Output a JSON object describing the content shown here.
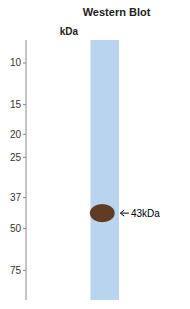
{
  "chart_data": {
    "type": "gel",
    "title": "Western Blot",
    "y_label": "kDa",
    "log": "y",
    "ylim": [
      100,
      8
    ],
    "yticks": [
      75,
      50,
      37,
      25,
      20,
      15,
      10
    ],
    "values": [
      43
    ],
    "color": "#5c3317",
    "annotations": [
      {
        "text": "43kDa",
        "y": 43
      }
    ]
  }
}
